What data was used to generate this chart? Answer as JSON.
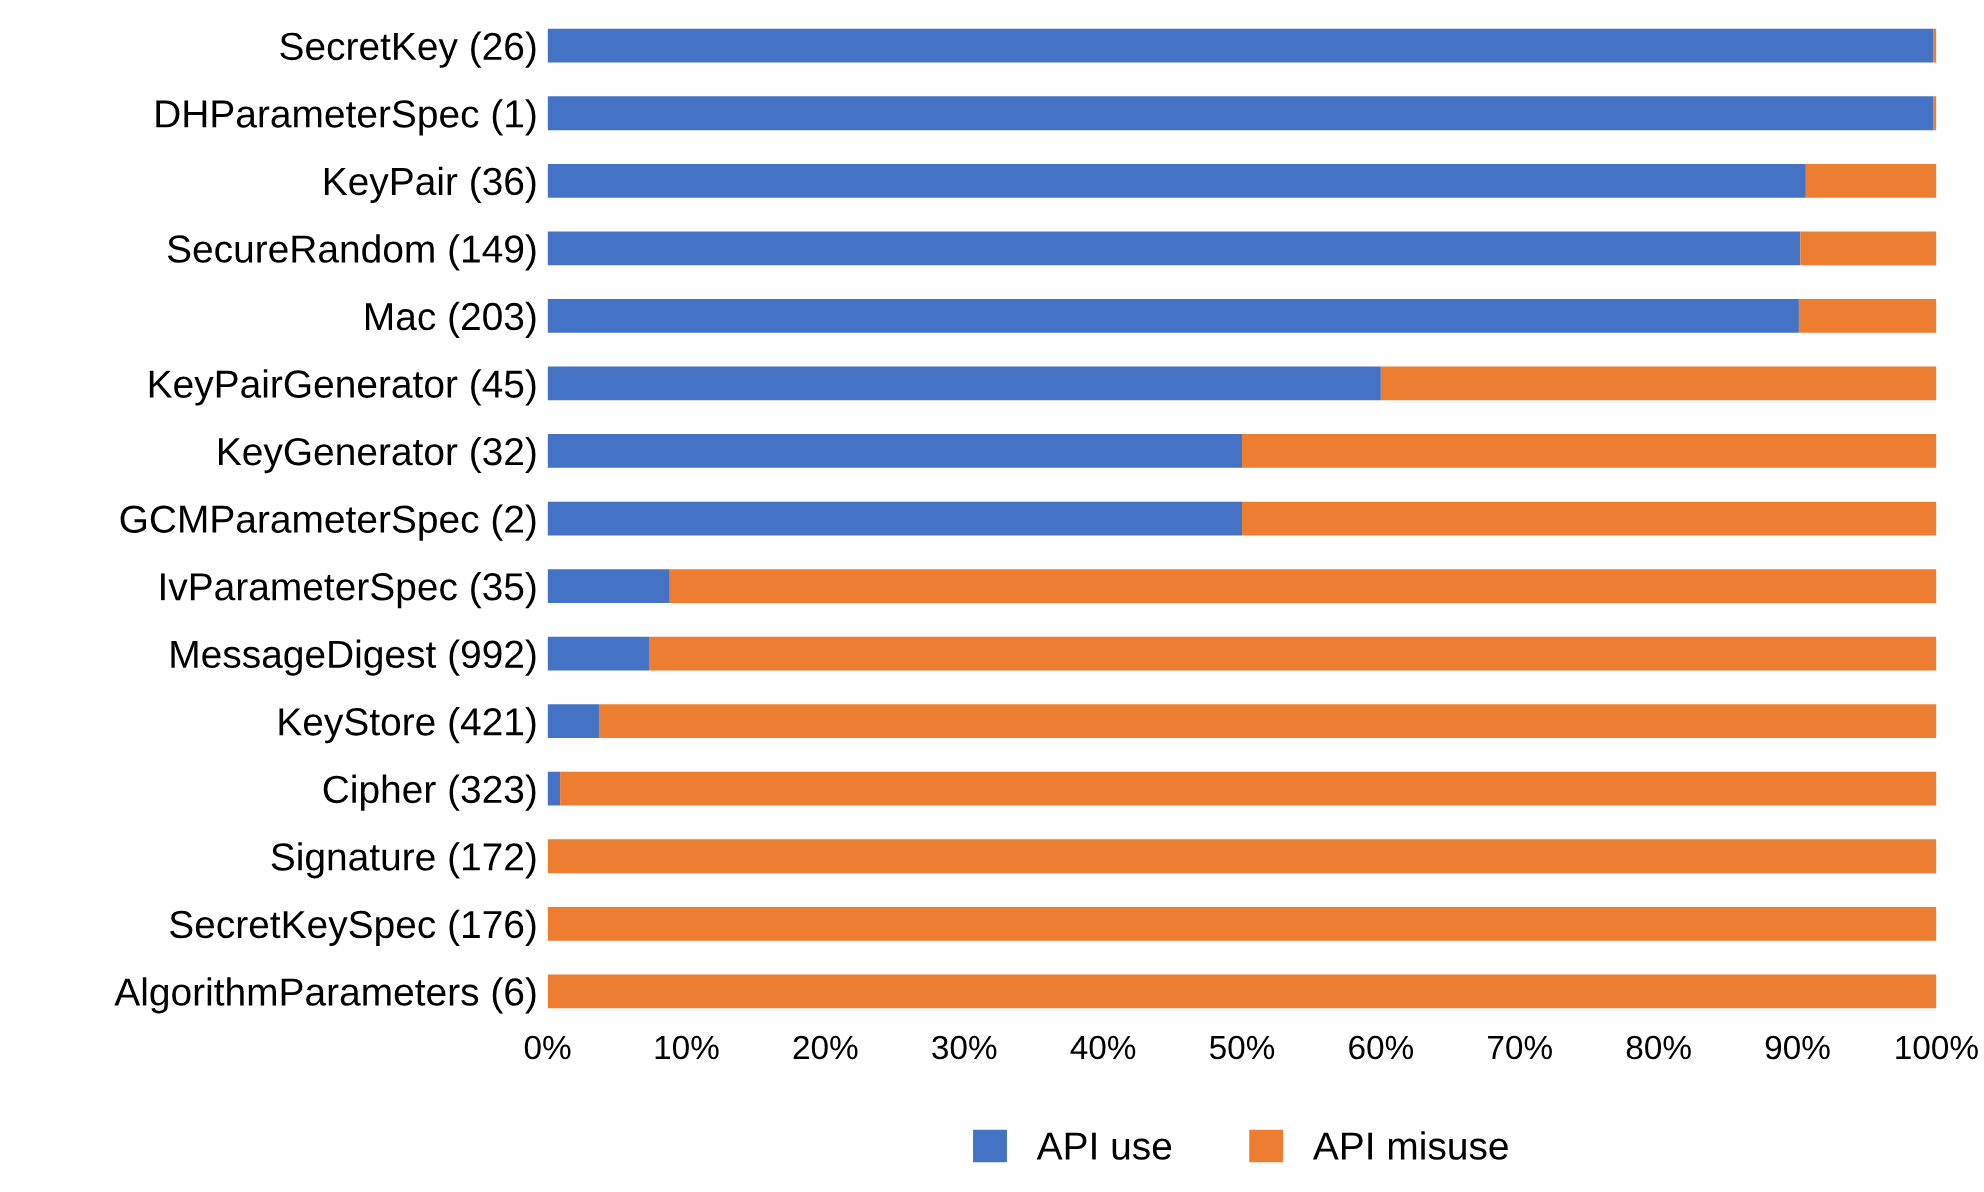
{
  "chart_data": {
    "type": "bar",
    "orientation": "horizontal",
    "stacked": true,
    "categories": [
      "SecretKey (26)",
      "DHParameterSpec (1)",
      "KeyPair (36)",
      "SecureRandom (149)",
      "Mac (203)",
      "KeyPairGenerator (45)",
      "KeyGenerator (32)",
      "GCMParameterSpec (2)",
      "IvParameterSpec (35)",
      "MessageDigest (992)",
      "KeyStore (421)",
      "Cipher (323)",
      "Signature (172)",
      "SecretKeySpec (176)",
      "AlgorithmParameters (6)"
    ],
    "series": [
      {
        "name": "API use",
        "color": "#4472c4",
        "values": [
          99.8,
          99.8,
          90.6,
          90.2,
          90.1,
          60,
          50,
          50,
          8.8,
          7.3,
          3.7,
          0.9,
          0,
          0,
          0
        ]
      },
      {
        "name": "API misuse",
        "color": "#ed7d31",
        "values": [
          0.2,
          0.2,
          9.4,
          9.8,
          9.9,
          40,
          50,
          50,
          91.2,
          92.7,
          96.3,
          99.1,
          100,
          100,
          100
        ]
      }
    ],
    "xlim": [
      0,
      100
    ],
    "xticks": [
      {
        "value": 0,
        "label": "0%"
      },
      {
        "value": 10,
        "label": "10%"
      },
      {
        "value": 20,
        "label": "20%"
      },
      {
        "value": 30,
        "label": "30%"
      },
      {
        "value": 40,
        "label": "40%"
      },
      {
        "value": 50,
        "label": "50%"
      },
      {
        "value": 60,
        "label": "60%"
      },
      {
        "value": 70,
        "label": "70%"
      },
      {
        "value": 80,
        "label": "80%"
      },
      {
        "value": 90,
        "label": "90%"
      },
      {
        "value": 100,
        "label": "100%"
      }
    ],
    "grid": false,
    "legend": "bottom"
  }
}
